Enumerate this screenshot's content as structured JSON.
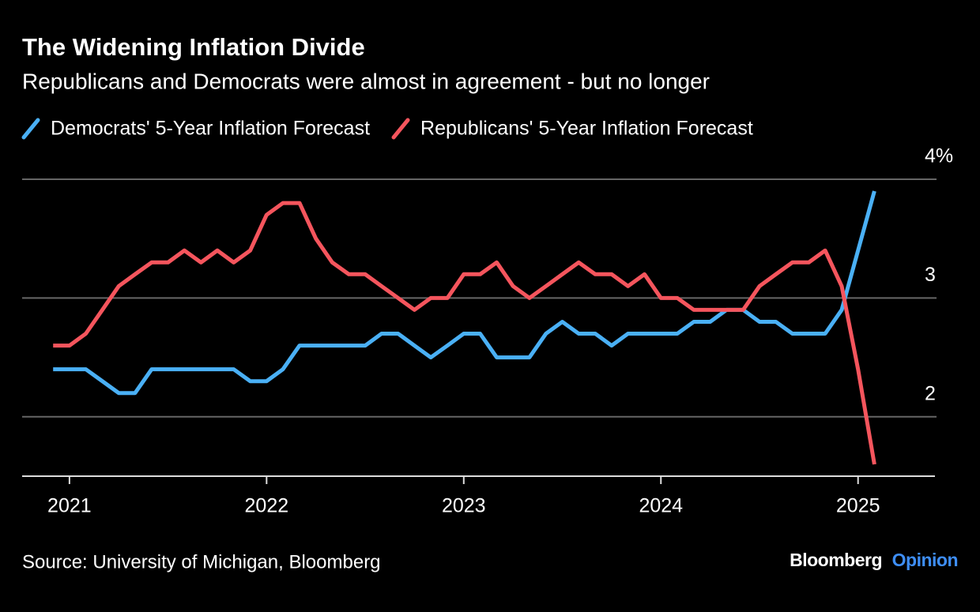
{
  "chart_data": {
    "type": "line",
    "title": "The Widening Inflation Divide",
    "subtitle": "Republicans and Democrats were almost in agreement - but no longer",
    "source": "Source: University of Michigan, Bloomberg",
    "brand": "Bloomberg",
    "brand_sub": "Opinion",
    "x": [
      2020.917,
      2021.0,
      2021.083,
      2021.167,
      2021.25,
      2021.333,
      2021.417,
      2021.5,
      2021.583,
      2021.667,
      2021.75,
      2021.833,
      2021.917,
      2022.0,
      2022.083,
      2022.167,
      2022.25,
      2022.333,
      2022.417,
      2022.5,
      2022.583,
      2022.667,
      2022.75,
      2022.833,
      2022.917,
      2023.0,
      2023.083,
      2023.167,
      2023.25,
      2023.333,
      2023.417,
      2023.5,
      2023.583,
      2023.667,
      2023.75,
      2023.833,
      2023.917,
      2024.0,
      2024.083,
      2024.167,
      2024.25,
      2024.333,
      2024.417,
      2024.5,
      2024.583,
      2024.667,
      2024.75,
      2024.833,
      2024.917,
      2025.0,
      2025.083
    ],
    "series": [
      {
        "name": "Democrats' 5-Year Inflation Forecast",
        "color": "#4ab0f5",
        "values": [
          2.4,
          2.4,
          2.4,
          2.3,
          2.2,
          2.2,
          2.4,
          2.4,
          2.4,
          2.4,
          2.4,
          2.4,
          2.3,
          2.3,
          2.4,
          2.6,
          2.6,
          2.6,
          2.6,
          2.6,
          2.7,
          2.7,
          2.6,
          2.5,
          2.6,
          2.7,
          2.7,
          2.5,
          2.5,
          2.5,
          2.7,
          2.8,
          2.7,
          2.7,
          2.6,
          2.7,
          2.7,
          2.7,
          2.7,
          2.8,
          2.8,
          2.9,
          2.9,
          2.8,
          2.8,
          2.7,
          2.7,
          2.7,
          2.9,
          3.4,
          3.9
        ]
      },
      {
        "name": "Republicans' 5-Year Inflation Forecast",
        "color": "#f5555d",
        "values": [
          2.6,
          2.6,
          2.7,
          2.9,
          3.1,
          3.2,
          3.3,
          3.3,
          3.4,
          3.3,
          3.4,
          3.3,
          3.4,
          3.7,
          3.8,
          3.8,
          3.5,
          3.3,
          3.2,
          3.2,
          3.1,
          3.0,
          2.9,
          3.0,
          3.0,
          3.2,
          3.2,
          3.3,
          3.1,
          3.0,
          3.1,
          3.2,
          3.3,
          3.2,
          3.2,
          3.1,
          3.2,
          3.0,
          3.0,
          2.9,
          2.9,
          2.9,
          2.9,
          3.1,
          3.2,
          3.3,
          3.3,
          3.4,
          3.1,
          2.4,
          1.6
        ]
      }
    ],
    "xlim": [
      2020.76,
      2025.39
    ],
    "xticks": [
      2021,
      2022,
      2023,
      2024,
      2025
    ],
    "ylim": [
      1.5,
      4
    ],
    "yticks": [
      2,
      3,
      {
        "value": 4,
        "label": "4%"
      }
    ],
    "grid": true
  }
}
